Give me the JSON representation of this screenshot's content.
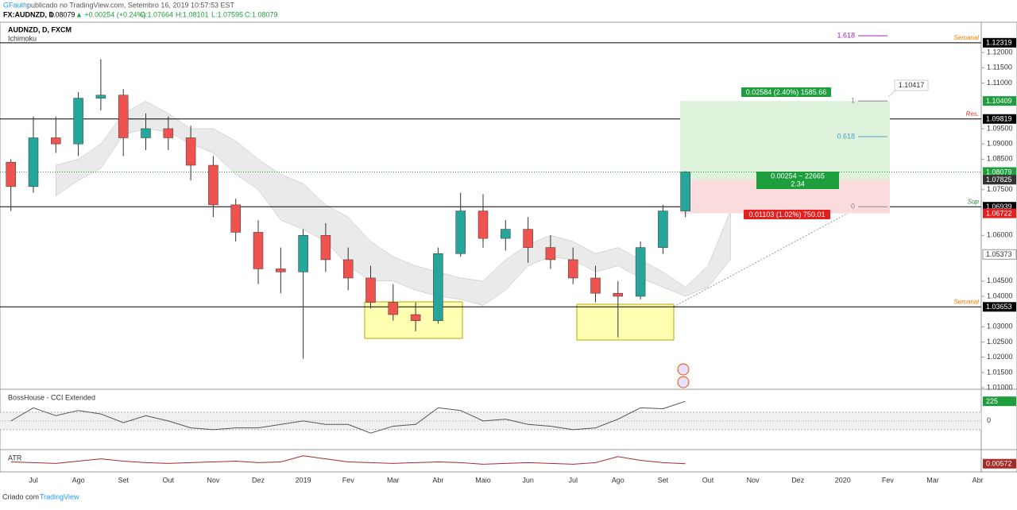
{
  "header": {
    "author": "GFauth",
    "published": "publicado no TradingView.com, Setembro 16, 2019 10:57:53 EST",
    "symbol": "FX:AUDNZD, D",
    "price": "1.08079",
    "change": "▲ +0.00254 (+0.24%)",
    "ohlc": [
      "O:1.07664",
      "H:1.08101",
      "L:1.07595",
      "C:1.08079"
    ],
    "legend": "AUDNZD, D, FXCM",
    "indicator": "Ichimoku"
  },
  "chart_data": {
    "type": "candlestick",
    "categories": [
      null,
      "Jul",
      null,
      "Ago",
      null,
      "Set",
      null,
      "Out",
      null,
      "Nov",
      null,
      "Dez",
      null,
      "2019",
      null,
      "Fev",
      null,
      "Mar",
      null,
      "Abr",
      null,
      "Maio",
      null,
      "Jun",
      null,
      "Jul",
      null,
      "Ago",
      null,
      "Set",
      null,
      "Out",
      null,
      "Nov",
      null,
      "Dez",
      null,
      "2020",
      null,
      "Fev",
      null,
      "Mar",
      null,
      "Abr",
      null
    ],
    "open": [
      1.084,
      1.076,
      1.092,
      1.09,
      1.105,
      1.106,
      1.092,
      1.095,
      1.092,
      1.083,
      1.07,
      1.061,
      1.049,
      1.048,
      1.06,
      1.052,
      1.046,
      1.038,
      1.034,
      1.032,
      1.054,
      1.068,
      1.059,
      1.062,
      1.056,
      1.052,
      1.046,
      1.041,
      1.04,
      1.056,
      1.068,
      null,
      null,
      null,
      null,
      null,
      null,
      null,
      null,
      null,
      null,
      null,
      null,
      null,
      null
    ],
    "high": [
      1.085,
      1.099,
      1.099,
      1.107,
      1.1178,
      1.108,
      1.1,
      1.099,
      1.096,
      1.086,
      1.072,
      1.065,
      1.056,
      1.062,
      1.064,
      1.056,
      1.05,
      1.044,
      1.038,
      1.056,
      1.074,
      1.0735,
      1.065,
      1.066,
      1.06,
      1.056,
      1.05,
      1.045,
      1.058,
      1.07,
      1.08101,
      null,
      null,
      null,
      null,
      null,
      null,
      null,
      null,
      null,
      null,
      null,
      null,
      null,
      null
    ],
    "low": [
      1.068,
      1.074,
      1.087,
      1.086,
      1.101,
      1.086,
      1.088,
      1.088,
      1.078,
      1.066,
      1.058,
      1.044,
      1.041,
      1.0195,
      1.048,
      1.042,
      1.036,
      1.032,
      1.0285,
      1.031,
      1.053,
      1.056,
      1.055,
      1.051,
      1.049,
      1.044,
      1.038,
      1.0265,
      1.039,
      1.054,
      1.066,
      null,
      null,
      null,
      null,
      null,
      null,
      null,
      null,
      null,
      null,
      null,
      null,
      null,
      null
    ],
    "close": [
      1.076,
      1.092,
      1.09,
      1.105,
      1.106,
      1.092,
      1.095,
      1.092,
      1.083,
      1.07,
      1.061,
      1.049,
      1.048,
      1.06,
      1.052,
      1.046,
      1.038,
      1.034,
      1.032,
      1.054,
      1.068,
      1.059,
      1.062,
      1.056,
      1.052,
      1.046,
      1.041,
      1.04,
      1.056,
      1.068,
      1.08079,
      null,
      null,
      null,
      null,
      null,
      null,
      null,
      null,
      null,
      null,
      null,
      null,
      null,
      null
    ],
    "cloud": {
      "upper": [
        null,
        null,
        1.083,
        1.085,
        1.09,
        1.1,
        1.104,
        1.1,
        1.095,
        1.095,
        1.091,
        1.085,
        1.08,
        1.077,
        1.07,
        1.066,
        1.058,
        1.053,
        1.05,
        1.048,
        1.046,
        1.045,
        1.052,
        1.057,
        1.06,
        1.058,
        1.054,
        1.056,
        1.052,
        1.048,
        1.043,
        1.05,
        1.068,
        null,
        null,
        null,
        null,
        null,
        null,
        null,
        null,
        null,
        null,
        null,
        null
      ],
      "lower": [
        null,
        null,
        1.073,
        1.078,
        1.082,
        1.093,
        1.095,
        1.094,
        1.09,
        1.087,
        1.08,
        1.075,
        1.065,
        1.062,
        1.058,
        1.05,
        1.045,
        1.045,
        1.042,
        1.04,
        1.039,
        1.037,
        1.042,
        1.05,
        1.053,
        1.052,
        1.048,
        1.05,
        1.046,
        1.043,
        1.04,
        1.043,
        1.052,
        null,
        null,
        null,
        null,
        null,
        null,
        null,
        null,
        null,
        null,
        null,
        null
      ],
      "color": "#dcdcdc"
    },
    "up_color": "#26a69a",
    "down_color": "#ef5350",
    "ylim": [
      1.0095,
      1.1294
    ],
    "yticks": [
      {
        "value": 1.12,
        "label": "1.12000"
      },
      {
        "value": 1.115,
        "label": "1.11500"
      },
      {
        "value": 1.11,
        "label": "1.11000"
      },
      {
        "value": 1.095,
        "label": "1.09500"
      },
      {
        "value": 1.09,
        "label": "1.09000"
      },
      {
        "value": 1.085,
        "label": "1.08500"
      },
      {
        "value": 1.075,
        "label": "1.07500"
      },
      {
        "value": 1.06,
        "label": "1.06000"
      },
      {
        "value": 1.045,
        "label": "1.04500"
      },
      {
        "value": 1.04,
        "label": "1.04000"
      },
      {
        "value": 1.03,
        "label": "1.03000"
      },
      {
        "value": 1.025,
        "label": "1.02500"
      },
      {
        "value": 1.02,
        "label": "1.02000"
      },
      {
        "value": 1.015,
        "label": "1.01500"
      },
      {
        "value": 1.01,
        "label": "1.01000"
      }
    ],
    "lines": [
      {
        "value": 1.12319,
        "label": "Semanal",
        "color": "#f57c00"
      },
      {
        "value": 1.09819,
        "label": "Res.",
        "color": "#e53935"
      },
      {
        "value": 1.06939,
        "label": "Sup",
        "color": "#2e7d32"
      },
      {
        "value": 1.03653,
        "label": "Semanal",
        "color": "#f57c00"
      }
    ],
    "tags": [
      {
        "value": 1.12319,
        "color": "#000000"
      },
      {
        "value": 1.10409,
        "color": "#1e9e3c"
      },
      {
        "value": 1.09819,
        "color": "#000000"
      },
      {
        "value": 1.08079,
        "color": "#1e9e3c"
      },
      {
        "value": 1.07825,
        "color": "#333333"
      },
      {
        "value": 1.06939,
        "color": "#000000"
      },
      {
        "value": 1.06722,
        "color": "#e31f1f"
      },
      {
        "value": 1.05373,
        "color": "#ffffff"
      },
      {
        "value": 1.03653,
        "color": "#000000"
      }
    ],
    "fib": [
      {
        "label": "1.618",
        "value": 1.1255,
        "color": "#9c27b0"
      },
      {
        "label": "1",
        "value": 1.10409,
        "color": "#888888"
      },
      {
        "label": "0.618",
        "value": 1.0924,
        "color": "#4a9cc7"
      },
      {
        "label": "0",
        "value": 1.06939,
        "color": "#888888"
      }
    ],
    "fib_label": "1.10417",
    "position": {
      "target": "0.02584 (2.40%) 1585.66",
      "entry": [
        "0.00254 ~ 22665",
        "2.34"
      ],
      "stop": "0.01103 (1.02%) 750.01"
    },
    "cci": {
      "name": "BossHouse - CCI Extended",
      "values": [
        0,
        150,
        60,
        120,
        80,
        -20,
        60,
        0,
        -80,
        -100,
        -80,
        -80,
        -40,
        0,
        -40,
        -40,
        -140,
        -60,
        -40,
        150,
        120,
        0,
        20,
        -40,
        -60,
        -100,
        -80,
        20,
        150,
        140,
        225,
        null,
        null,
        null,
        null,
        null,
        null,
        null,
        null,
        null,
        null,
        null,
        null,
        null,
        null
      ],
      "ylim": [
        -320,
        345
      ],
      "yticks": [
        0
      ],
      "bands": [
        -100,
        100
      ],
      "color": "#555555"
    },
    "atr": {
      "name": "ATR",
      "values": [
        0.0062,
        0.006,
        0.0058,
        0.0064,
        0.007,
        0.0064,
        0.006,
        0.0058,
        0.006,
        0.0062,
        0.0064,
        0.006,
        0.0062,
        0.0078,
        0.007,
        0.0062,
        0.006,
        0.0058,
        0.006,
        0.0062,
        0.006,
        0.0056,
        0.0058,
        0.006,
        0.0058,
        0.0056,
        0.006,
        0.0076,
        0.0066,
        0.006,
        0.00572,
        null,
        null,
        null,
        null,
        null,
        null,
        null,
        null,
        null,
        null,
        null,
        null,
        null,
        null
      ],
      "ylim": [
        0.004,
        0.009
      ],
      "color": "#a52a2a"
    }
  },
  "footer": {
    "made": "Criado com",
    "brand": "TradingView"
  }
}
